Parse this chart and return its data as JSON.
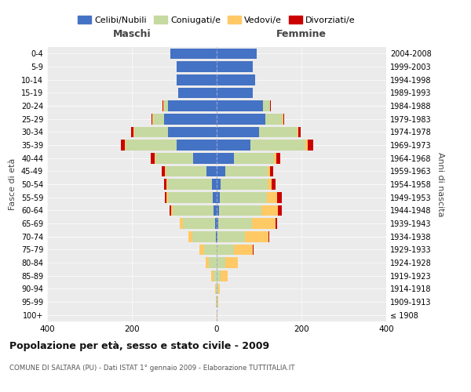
{
  "age_groups": [
    "100+",
    "95-99",
    "90-94",
    "85-89",
    "80-84",
    "75-79",
    "70-74",
    "65-69",
    "60-64",
    "55-59",
    "50-54",
    "45-49",
    "40-44",
    "35-39",
    "30-34",
    "25-29",
    "20-24",
    "15-19",
    "10-14",
    "5-9",
    "0-4"
  ],
  "birth_years": [
    "≤ 1908",
    "1909-1913",
    "1914-1918",
    "1919-1923",
    "1924-1928",
    "1929-1933",
    "1934-1938",
    "1939-1943",
    "1944-1948",
    "1949-1953",
    "1954-1958",
    "1959-1963",
    "1964-1968",
    "1969-1973",
    "1974-1978",
    "1979-1983",
    "1984-1988",
    "1989-1993",
    "1994-1998",
    "1999-2003",
    "2004-2008"
  ],
  "male_celibi": [
    0,
    0,
    0,
    0,
    0,
    0,
    2,
    4,
    8,
    10,
    12,
    25,
    55,
    95,
    115,
    125,
    115,
    90,
    95,
    95,
    110
  ],
  "male_coniugati": [
    0,
    1,
    2,
    8,
    18,
    30,
    55,
    75,
    95,
    105,
    105,
    95,
    90,
    120,
    80,
    25,
    10,
    0,
    0,
    0,
    0
  ],
  "male_vedovi": [
    0,
    1,
    2,
    5,
    8,
    10,
    10,
    8,
    5,
    3,
    2,
    2,
    1,
    1,
    1,
    1,
    1,
    0,
    0,
    0,
    0
  ],
  "male_divorziati": [
    0,
    0,
    0,
    0,
    0,
    0,
    0,
    0,
    3,
    5,
    5,
    8,
    10,
    10,
    5,
    2,
    1,
    0,
    0,
    0,
    0
  ],
  "female_celibi": [
    0,
    0,
    0,
    0,
    0,
    0,
    2,
    3,
    5,
    8,
    10,
    20,
    40,
    80,
    100,
    115,
    110,
    85,
    90,
    85,
    95
  ],
  "female_coniugati": [
    0,
    1,
    3,
    10,
    20,
    40,
    65,
    80,
    100,
    110,
    110,
    100,
    95,
    130,
    90,
    40,
    15,
    0,
    0,
    0,
    0
  ],
  "female_vedovi": [
    1,
    2,
    5,
    15,
    30,
    45,
    55,
    55,
    40,
    25,
    10,
    5,
    5,
    5,
    3,
    2,
    1,
    0,
    0,
    0,
    0
  ],
  "female_divorziati": [
    0,
    0,
    0,
    0,
    0,
    2,
    2,
    5,
    8,
    10,
    8,
    8,
    10,
    12,
    5,
    2,
    1,
    0,
    0,
    0,
    0
  ],
  "color_celibi": "#4472c4",
  "color_coniugati": "#c6d9a0",
  "color_vedovi": "#ffc966",
  "color_divorziati": "#cc0000",
  "title": "Popolazione per età, sesso e stato civile - 2009",
  "subtitle": "COMUNE DI SALTARA (PU) - Dati ISTAT 1° gennaio 2009 - Elaborazione TUTTITALIA.IT",
  "ylabel_left": "Fasce di età",
  "ylabel_right": "Anni di nascita",
  "xlim": 400,
  "bg_color": "#ffffff",
  "plot_bg_color": "#ebebeb",
  "grid_color": "#ffffff",
  "maschi_label": "Maschi",
  "femmine_label": "Femmine"
}
